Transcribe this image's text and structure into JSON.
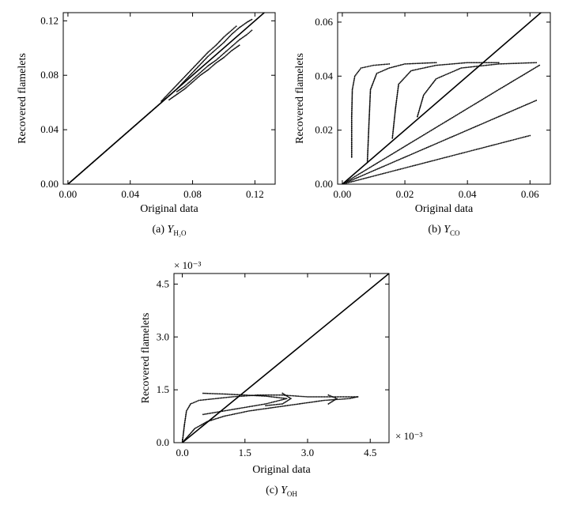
{
  "chart_data": [
    {
      "id": "a",
      "type": "scatter",
      "xlabel": "Original data",
      "ylabel": "Recovered flamelets",
      "caption": {
        "prefix": "(a) ",
        "var": "Y",
        "sub": "H₂O"
      },
      "xlim": [
        -0.003,
        0.133
      ],
      "ylim": [
        0,
        0.126
      ],
      "xticks": [
        0.0,
        0.04,
        0.08,
        0.12
      ],
      "yticks": [
        0.0,
        0.04,
        0.08,
        0.12
      ],
      "xtick_labels": [
        "0.00",
        "0.04",
        "0.08",
        "0.12"
      ],
      "ytick_labels": [
        "0.00",
        "0.04",
        "0.08",
        "0.12"
      ],
      "reference_line": [
        [
          0,
          0
        ],
        [
          0.13,
          0.13
        ]
      ],
      "series": [
        {
          "points": [
            [
              0.0,
              0.0
            ],
            [
              0.005,
              0.005
            ],
            [
              0.01,
              0.01
            ],
            [
              0.015,
              0.015
            ],
            [
              0.02,
              0.02
            ],
            [
              0.025,
              0.025
            ],
            [
              0.03,
              0.03
            ],
            [
              0.035,
              0.035
            ],
            [
              0.04,
              0.04
            ],
            [
              0.045,
              0.045
            ],
            [
              0.05,
              0.05
            ],
            [
              0.055,
              0.055
            ],
            [
              0.06,
              0.06
            ],
            [
              0.065,
              0.065
            ],
            [
              0.07,
              0.07
            ],
            [
              0.075,
              0.076
            ],
            [
              0.08,
              0.082
            ],
            [
              0.085,
              0.088
            ],
            [
              0.09,
              0.094
            ],
            [
              0.095,
              0.099
            ],
            [
              0.1,
              0.104
            ],
            [
              0.105,
              0.11
            ],
            [
              0.11,
              0.115
            ],
            [
              0.115,
              0.119
            ],
            [
              0.118,
              0.121
            ]
          ]
        },
        {
          "points": [
            [
              0.07,
              0.068
            ],
            [
              0.075,
              0.072
            ],
            [
              0.08,
              0.077
            ],
            [
              0.085,
              0.082
            ],
            [
              0.09,
              0.087
            ],
            [
              0.095,
              0.091
            ],
            [
              0.1,
              0.096
            ],
            [
              0.105,
              0.101
            ],
            [
              0.11,
              0.106
            ],
            [
              0.115,
              0.11
            ],
            [
              0.118,
              0.113
            ]
          ]
        },
        {
          "points": [
            [
              0.06,
              0.061
            ],
            [
              0.065,
              0.067
            ],
            [
              0.07,
              0.073
            ],
            [
              0.075,
              0.079
            ],
            [
              0.08,
              0.085
            ],
            [
              0.085,
              0.091
            ],
            [
              0.09,
              0.097
            ],
            [
              0.095,
              0.102
            ],
            [
              0.1,
              0.108
            ],
            [
              0.105,
              0.113
            ],
            [
              0.108,
              0.116
            ]
          ]
        },
        {
          "points": [
            [
              0.065,
              0.062
            ],
            [
              0.07,
              0.066
            ],
            [
              0.075,
              0.07
            ],
            [
              0.08,
              0.075
            ],
            [
              0.085,
              0.08
            ],
            [
              0.09,
              0.084
            ],
            [
              0.095,
              0.089
            ],
            [
              0.1,
              0.093
            ],
            [
              0.105,
              0.098
            ],
            [
              0.11,
              0.102
            ]
          ]
        }
      ]
    },
    {
      "id": "b",
      "type": "scatter",
      "xlabel": "Original data",
      "ylabel": "Recovered flamelets",
      "caption": {
        "prefix": "(b) ",
        "var": "Y",
        "sub": "CO"
      },
      "xlim": [
        -0.0015,
        0.0665
      ],
      "ylim": [
        0,
        0.0635
      ],
      "xticks": [
        0.0,
        0.02,
        0.04,
        0.06
      ],
      "yticks": [
        0.0,
        0.02,
        0.04,
        0.06
      ],
      "xtick_labels": [
        "0.00",
        "0.02",
        "0.04",
        "0.06"
      ],
      "ytick_labels": [
        "0.00",
        "0.02",
        "0.04",
        "0.06"
      ],
      "reference_line": [
        [
          0,
          0
        ],
        [
          0.0665,
          0.0665
        ]
      ],
      "series": [
        {
          "points": [
            [
              0.003,
              0.01
            ],
            [
              0.003,
              0.025
            ],
            [
              0.0032,
              0.035
            ],
            [
              0.004,
              0.04
            ],
            [
              0.006,
              0.043
            ],
            [
              0.01,
              0.044
            ],
            [
              0.015,
              0.0445
            ]
          ]
        },
        {
          "points": [
            [
              0.008,
              0.008
            ],
            [
              0.0085,
              0.022
            ],
            [
              0.009,
              0.035
            ],
            [
              0.011,
              0.041
            ],
            [
              0.015,
              0.043
            ],
            [
              0.02,
              0.0445
            ],
            [
              0.03,
              0.045
            ]
          ]
        },
        {
          "points": [
            [
              0.016,
              0.017
            ],
            [
              0.017,
              0.028
            ],
            [
              0.018,
              0.037
            ],
            [
              0.022,
              0.042
            ],
            [
              0.03,
              0.044
            ],
            [
              0.04,
              0.045
            ],
            [
              0.05,
              0.045
            ]
          ]
        },
        {
          "points": [
            [
              0.024,
              0.025
            ],
            [
              0.026,
              0.033
            ],
            [
              0.03,
              0.039
            ],
            [
              0.038,
              0.043
            ],
            [
              0.05,
              0.0445
            ],
            [
              0.062,
              0.045
            ]
          ]
        },
        {
          "points": [
            [
              0.0,
              0.0
            ],
            [
              0.01,
              0.007
            ],
            [
              0.02,
              0.014
            ],
            [
              0.03,
              0.021
            ],
            [
              0.04,
              0.028
            ],
            [
              0.05,
              0.035
            ],
            [
              0.063,
              0.044
            ]
          ]
        },
        {
          "points": [
            [
              0.0,
              0.0
            ],
            [
              0.01,
              0.005
            ],
            [
              0.02,
              0.01
            ],
            [
              0.03,
              0.015
            ],
            [
              0.04,
              0.02
            ],
            [
              0.05,
              0.025
            ],
            [
              0.062,
              0.031
            ]
          ]
        },
        {
          "points": [
            [
              0.0,
              0.0
            ],
            [
              0.01,
              0.003
            ],
            [
              0.02,
              0.006
            ],
            [
              0.03,
              0.009
            ],
            [
              0.04,
              0.012
            ],
            [
              0.05,
              0.015
            ],
            [
              0.06,
              0.018
            ]
          ]
        }
      ]
    },
    {
      "id": "c",
      "type": "scatter",
      "xlabel": "Original data",
      "ylabel": "Recovered flamelets",
      "caption": {
        "prefix": "(c) ",
        "var": "Y",
        "sub": "OH"
      },
      "x_multiplier": "× 10⁻³",
      "y_multiplier": "× 10⁻³",
      "xlim": [
        -0.2,
        4.95
      ],
      "ylim": [
        0,
        4.8
      ],
      "xticks": [
        0.0,
        1.5,
        3.0,
        4.5
      ],
      "yticks": [
        0.0,
        1.5,
        3.0,
        4.5
      ],
      "xtick_labels": [
        "0.0",
        "1.5",
        "3.0",
        "4.5"
      ],
      "ytick_labels": [
        "0.0",
        "1.5",
        "3.0",
        "4.5"
      ],
      "reference_line": [
        [
          0,
          0
        ],
        [
          4.95,
          4.8
        ]
      ],
      "series": [
        {
          "points": [
            [
              0.0,
              0.0
            ],
            [
              0.05,
              0.5
            ],
            [
              0.1,
              0.9
            ],
            [
              0.2,
              1.1
            ],
            [
              0.4,
              1.2
            ],
            [
              0.8,
              1.25
            ],
            [
              1.2,
              1.3
            ],
            [
              1.8,
              1.35
            ],
            [
              2.4,
              1.35
            ],
            [
              3.0,
              1.3
            ],
            [
              3.6,
              1.3
            ],
            [
              4.2,
              1.3
            ]
          ]
        },
        {
          "points": [
            [
              0.0,
              0.0
            ],
            [
              0.3,
              0.4
            ],
            [
              0.6,
              0.6
            ],
            [
              1.0,
              0.75
            ],
            [
              1.6,
              0.9
            ],
            [
              2.2,
              1.0
            ],
            [
              2.8,
              1.1
            ],
            [
              3.4,
              1.2
            ],
            [
              4.0,
              1.25
            ],
            [
              4.2,
              1.3
            ]
          ]
        },
        {
          "points": [
            [
              0.5,
              1.4
            ],
            [
              1.0,
              1.38
            ],
            [
              1.5,
              1.35
            ],
            [
              2.0,
              1.32
            ],
            [
              2.5,
              1.25
            ],
            [
              2.0,
              1.1
            ],
            [
              1.5,
              1.0
            ],
            [
              1.0,
              0.9
            ],
            [
              0.5,
              0.8
            ]
          ]
        },
        {
          "points": [
            [
              2.4,
              1.4
            ],
            [
              2.6,
              1.25
            ],
            [
              2.4,
              1.1
            ],
            [
              2.0,
              1.05
            ]
          ]
        },
        {
          "points": [
            [
              3.5,
              1.35
            ],
            [
              3.7,
              1.25
            ],
            [
              3.5,
              1.1
            ]
          ]
        }
      ]
    }
  ]
}
